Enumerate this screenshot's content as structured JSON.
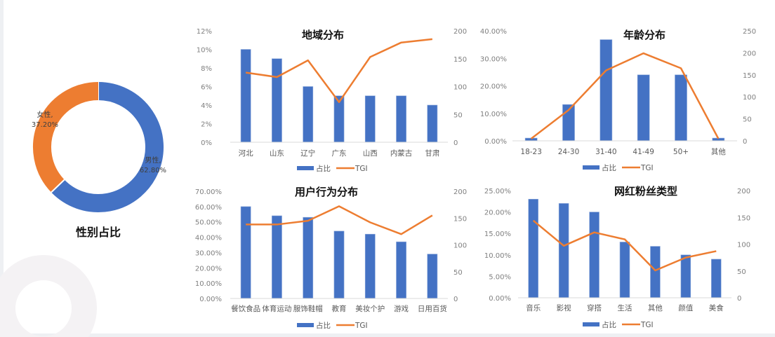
{
  "colors": {
    "bar": "#4472c4",
    "line": "#ed7d31",
    "axis_text": "#7f7f7f",
    "axis_line": "#d9d9d9",
    "male": "#4472c4",
    "female": "#ed7d31"
  },
  "gender": {
    "title": "性别占比",
    "male_label": "男性,",
    "male_value": "62.80%",
    "female_label": "女性,",
    "female_value": "37.20%"
  },
  "legend": {
    "bar_label": "占比",
    "line_label": "TGI"
  },
  "chart_data": [
    {
      "type": "pie",
      "title": "性别占比",
      "categories": [
        "男性",
        "女性"
      ],
      "values": [
        62.8,
        37.2
      ],
      "donut": true
    },
    {
      "type": "bar",
      "title": "地域分布",
      "categories": [
        "河北",
        "山东",
        "辽宁",
        "广东",
        "山西",
        "内蒙古",
        "甘肃"
      ],
      "series": [
        {
          "name": "占比",
          "type": "bar",
          "axis": "left",
          "values": [
            10,
            9,
            6,
            5,
            5,
            5,
            4
          ]
        },
        {
          "name": "TGI",
          "type": "line",
          "axis": "right",
          "values": [
            125,
            117,
            147,
            72,
            153,
            179,
            185
          ]
        }
      ],
      "ylim": [
        0,
        12
      ],
      "y_ticks": [
        "0%",
        "2%",
        "4%",
        "6%",
        "8%",
        "10%",
        "12%"
      ],
      "y2lim": [
        0,
        200
      ],
      "y2_ticks": [
        "0",
        "50",
        "100",
        "150",
        "200"
      ],
      "legend_position": "bottom"
    },
    {
      "type": "bar",
      "title": "年龄分布",
      "categories": [
        "18-23",
        "24-30",
        "31-40",
        "41-49",
        "50+",
        "其他"
      ],
      "series": [
        {
          "name": "占比",
          "type": "bar",
          "axis": "left",
          "values": [
            1.0,
            13.2,
            36.8,
            24.0,
            24.0,
            1.0
          ]
        },
        {
          "name": "TGI",
          "type": "line",
          "axis": "right",
          "values": [
            5,
            70,
            160,
            199,
            165,
            5
          ]
        }
      ],
      "ylim": [
        0,
        40
      ],
      "y_ticks": [
        "0.00%",
        "10.00%",
        "20.00%",
        "30.00%",
        "40.00%"
      ],
      "y2lim": [
        0,
        250
      ],
      "y2_ticks": [
        "0",
        "50",
        "100",
        "150",
        "200",
        "250"
      ],
      "legend_position": "bottom"
    },
    {
      "type": "bar",
      "title": "用户行为分布",
      "categories": [
        "餐饮食品",
        "体育运动",
        "服饰鞋帽",
        "教育",
        "美妆个护",
        "游戏",
        "日用百货"
      ],
      "series": [
        {
          "name": "占比",
          "type": "bar",
          "axis": "left",
          "values": [
            60,
            54,
            53,
            44,
            42,
            37,
            29
          ]
        },
        {
          "name": "TGI",
          "type": "line",
          "axis": "right",
          "values": [
            138,
            138,
            145,
            172,
            142,
            120,
            155
          ]
        }
      ],
      "ylim": [
        0,
        70
      ],
      "y_ticks": [
        "0.00%",
        "10.00%",
        "20.00%",
        "30.00%",
        "40.00%",
        "50.00%",
        "60.00%",
        "70.00%"
      ],
      "y2lim": [
        0,
        200
      ],
      "y2_ticks": [
        "0",
        "50",
        "100",
        "150",
        "200"
      ],
      "legend_position": "bottom"
    },
    {
      "type": "bar",
      "title": "网红粉丝类型",
      "categories": [
        "音乐",
        "影视",
        "穿搭",
        "生活",
        "其他",
        "颜值",
        "美食"
      ],
      "series": [
        {
          "name": "占比",
          "type": "bar",
          "axis": "left",
          "values": [
            23,
            22,
            20,
            13,
            12,
            10,
            9
          ]
        },
        {
          "name": "TGI",
          "type": "line",
          "axis": "right",
          "values": [
            144,
            97,
            122,
            109,
            51,
            75,
            87
          ]
        }
      ],
      "ylim": [
        0,
        25
      ],
      "y_ticks": [
        "0.00%",
        "5.00%",
        "10.00%",
        "15.00%",
        "20.00%",
        "25.00%"
      ],
      "y2lim": [
        0,
        200
      ],
      "y2_ticks": [
        "0",
        "50",
        "100",
        "150",
        "200"
      ],
      "legend_position": "bottom"
    }
  ]
}
